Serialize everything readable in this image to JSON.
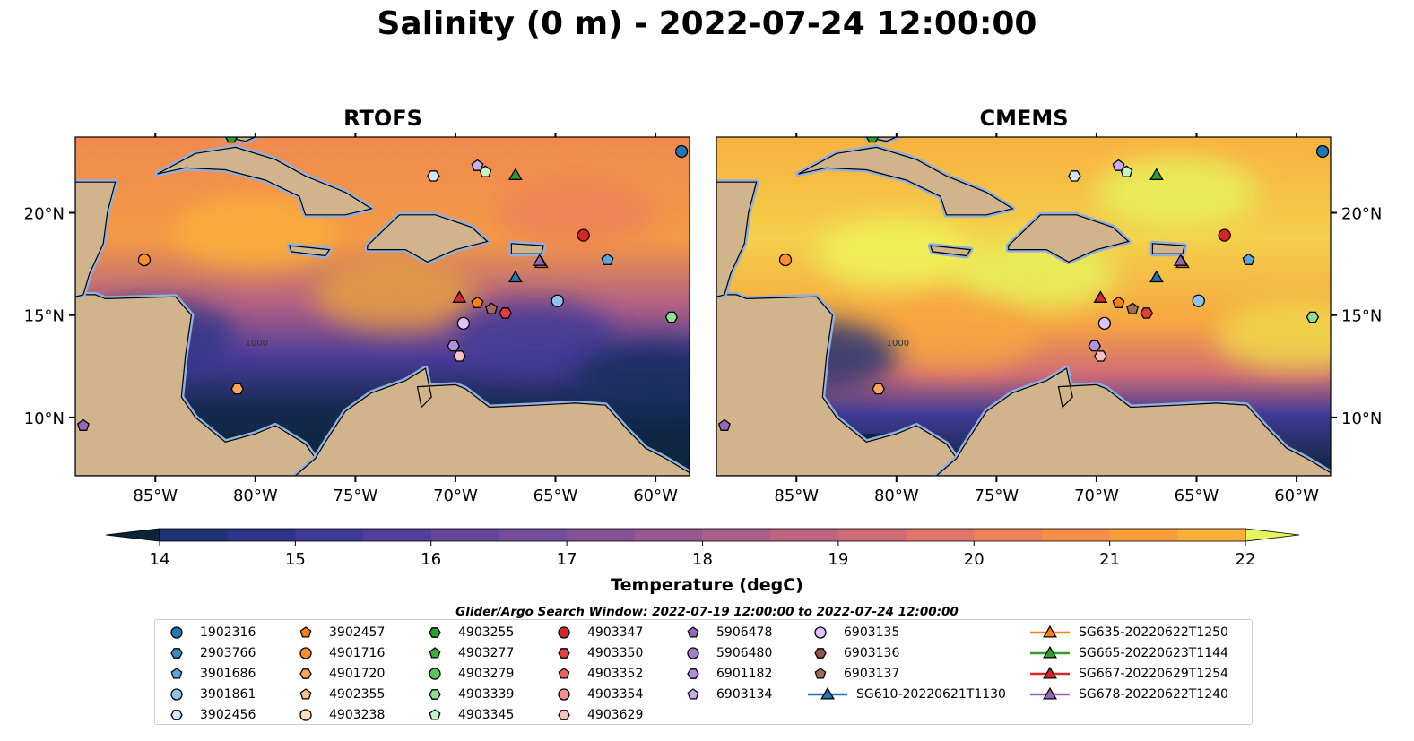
{
  "title": "Salinity (0 m) - 2022-07-24 12:00:00",
  "panels": [
    {
      "title": "RTOFS"
    },
    {
      "title": "CMEMS"
    }
  ],
  "colorbar": {
    "label": "Temperature (degC)",
    "ticks": [
      "14",
      "15",
      "16",
      "17",
      "18",
      "19",
      "20",
      "21",
      "22"
    ],
    "min": 14,
    "max": 22,
    "step": 0.5,
    "colors": [
      "#0b2535",
      "#0f2a45",
      "#142f5c",
      "#1f3274",
      "#2e3589",
      "#3f3a96",
      "#523f9c",
      "#63469c",
      "#744c9a",
      "#855296",
      "#975890",
      "#aa5e88",
      "#bd6580",
      "#d06c75",
      "#e2756a",
      "#ef8058",
      "#f68e47",
      "#fa9e3c",
      "#fcb03a",
      "#f9c43e",
      "#f0dc48",
      "#e6f55c"
    ]
  },
  "legend": {
    "title": "Glider/Argo Search Window: 2022-07-19 12:00:00 to 2022-07-24 12:00:00"
  },
  "chart_data": {
    "type": "map",
    "lon_ticks": [
      "85°W",
      "80°W",
      "75°W",
      "70°W",
      "65°W",
      "60°W"
    ],
    "lat_ticks": [
      "10°N",
      "15°N",
      "20°N"
    ],
    "lon_range": [
      -89,
      -58.3
    ],
    "lat_range": [
      7.15,
      23.7
    ],
    "isobath_label": "1000",
    "markers": [
      {
        "name": "1902316",
        "shape": "circle",
        "color": "#1f77b4",
        "lon": -58.7,
        "lat": 23.0
      },
      {
        "name": "2903766",
        "shape": "hexagon",
        "color": "#3a8cc4"
      },
      {
        "name": "3901686",
        "shape": "pentagon",
        "color": "#5aa5dc",
        "lon": -62.4,
        "lat": 17.7
      },
      {
        "name": "3901861",
        "shape": "circle",
        "color": "#8cc4ec",
        "lon": -64.9,
        "lat": 15.7
      },
      {
        "name": "3902456",
        "shape": "hexagon",
        "color": "#cfe6fb",
        "lon": -71.1,
        "lat": 21.8
      },
      {
        "name": "3902457",
        "shape": "pentagon",
        "color": "#ff7f0e",
        "lon": -68.9,
        "lat": 15.6
      },
      {
        "name": "4901716",
        "shape": "circle",
        "color": "#ff8f2e",
        "lon": -85.55,
        "lat": 17.7
      },
      {
        "name": "4901720",
        "shape": "hexagon",
        "color": "#ffa55a",
        "lon": -80.9,
        "lat": 11.4
      },
      {
        "name": "4902355",
        "shape": "pentagon",
        "color": "#ffbf8a"
      },
      {
        "name": "4903238",
        "shape": "circle",
        "color": "#ffddbf"
      },
      {
        "name": "4903255",
        "shape": "hexagon",
        "color": "#2ca02c",
        "lon": -81.2,
        "lat": 23.7
      },
      {
        "name": "4903277",
        "shape": "pentagon",
        "color": "#3cae3c"
      },
      {
        "name": "4903279",
        "shape": "circle",
        "color": "#5cc45c"
      },
      {
        "name": "4903339",
        "shape": "hexagon",
        "color": "#8ee08e",
        "lon": -59.2,
        "lat": 14.9
      },
      {
        "name": "4903345",
        "shape": "pentagon",
        "color": "#c2f7c2",
        "lon": -68.5,
        "lat": 22.0
      },
      {
        "name": "4903347",
        "shape": "circle",
        "color": "#d62728",
        "lon": -63.6,
        "lat": 18.9
      },
      {
        "name": "4903350",
        "shape": "hexagon",
        "color": "#e04040",
        "lon": -67.5,
        "lat": 15.1
      },
      {
        "name": "4903352",
        "shape": "pentagon",
        "color": "#e86060"
      },
      {
        "name": "4903354",
        "shape": "circle",
        "color": "#f09090"
      },
      {
        "name": "4903629",
        "shape": "hexagon",
        "color": "#f8c0c0",
        "lon": -69.8,
        "lat": 13.0
      },
      {
        "name": "5906478",
        "shape": "pentagon",
        "color": "#9467bd",
        "lon": -88.6,
        "lat": 9.6
      },
      {
        "name": "5906480",
        "shape": "circle",
        "color": "#a47acc"
      },
      {
        "name": "6901182",
        "shape": "hexagon",
        "color": "#b690de",
        "lon": -70.1,
        "lat": 13.5
      },
      {
        "name": "6903134",
        "shape": "pentagon",
        "color": "#cbaaf0",
        "lon": -68.9,
        "lat": 22.3
      },
      {
        "name": "6903135",
        "shape": "circle",
        "color": "#dcc4f8",
        "lon": -69.6,
        "lat": 14.6
      },
      {
        "name": "6903136",
        "shape": "hexagon",
        "color": "#8c564b"
      },
      {
        "name": "6903137",
        "shape": "pentagon",
        "color": "#a06a5e",
        "lon": -68.2,
        "lat": 15.3
      },
      {
        "name": "SG610-20220621T1130",
        "shape": "triangle",
        "color": "#1f77b4",
        "lon": -67.0,
        "lat": 16.8
      },
      {
        "name": "SG635-20220622T1250",
        "shape": "triangle",
        "color": "#ff7f0e",
        "lon": -65.7,
        "lat": 17.5
      },
      {
        "name": "SG665-20220623T1144",
        "shape": "triangle",
        "color": "#2ca02c",
        "lon": -67.0,
        "lat": 21.8
      },
      {
        "name": "SG667-20220629T1254",
        "shape": "triangle",
        "color": "#d62728",
        "lon": -69.8,
        "lat": 15.8
      },
      {
        "name": "SG678-20220622T1240",
        "shape": "triangle",
        "color": "#9467bd",
        "lon": -65.8,
        "lat": 17.6
      }
    ]
  }
}
